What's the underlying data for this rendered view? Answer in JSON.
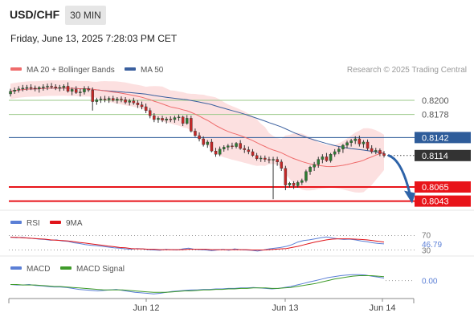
{
  "header": {
    "symbol": "USD/CHF",
    "timeframe": "30 MIN",
    "datetime": "Friday, June 13, 2025 7:28:03 PM CET"
  },
  "legend": {
    "ma20": "MA 20 + Bollinger Bands",
    "ma50": "MA 50",
    "rsi": "RSI",
    "rsi_ma": "9MA",
    "macd": "MACD",
    "macd_signal": "MACD Signal"
  },
  "credit": "Research © 2025 Trading Central",
  "colors": {
    "candle_up": "#2e7d32",
    "candle_down": "#c62828",
    "ma20": "#ef6b6b",
    "ma50": "#3a5f9e",
    "bollinger_fill": "#fbd6d6",
    "support": "#e8141a",
    "target": "#9bc98a",
    "current": "#333333",
    "pivot": "#2e5c9a",
    "arrow": "#2e63a8"
  },
  "chart_data": [
    {
      "type": "candlestick",
      "title": "USD/CHF",
      "x_ticks": [
        "Jun 12",
        "Jun 13",
        "Jun 14"
      ],
      "ylim": [
        0.8035,
        0.8235
      ],
      "levels": [
        {
          "value": 0.82,
          "label": "0.8200",
          "kind": "target"
        },
        {
          "value": 0.8178,
          "label": "0.8178",
          "kind": "target"
        },
        {
          "value": 0.8142,
          "label": "0.8142",
          "kind": "pivot"
        },
        {
          "value": 0.8114,
          "label": "0.8114",
          "kind": "current"
        },
        {
          "value": 0.8065,
          "label": "0.8065",
          "kind": "support"
        },
        {
          "value": 0.8043,
          "label": "0.8043",
          "kind": "support"
        }
      ],
      "candles": [
        [
          0.821,
          0.8218,
          0.8206,
          0.8214
        ],
        [
          0.8214,
          0.822,
          0.821,
          0.8216
        ],
        [
          0.8216,
          0.8222,
          0.8212,
          0.8218
        ],
        [
          0.8218,
          0.8224,
          0.8214,
          0.8219
        ],
        [
          0.8219,
          0.8224,
          0.8215,
          0.822
        ],
        [
          0.822,
          0.8225,
          0.8216,
          0.8219
        ],
        [
          0.8219,
          0.8223,
          0.8214,
          0.8218
        ],
        [
          0.8218,
          0.8222,
          0.8212,
          0.822
        ],
        [
          0.822,
          0.8225,
          0.8215,
          0.8221
        ],
        [
          0.8221,
          0.8226,
          0.8216,
          0.8222
        ],
        [
          0.8222,
          0.8227,
          0.8218,
          0.8221
        ],
        [
          0.8221,
          0.8225,
          0.8216,
          0.8219
        ],
        [
          0.8219,
          0.8224,
          0.8214,
          0.822
        ],
        [
          0.822,
          0.8225,
          0.8215,
          0.8222
        ],
        [
          0.8222,
          0.8228,
          0.8212,
          0.8214
        ],
        [
          0.8214,
          0.822,
          0.8208,
          0.8217
        ],
        [
          0.8217,
          0.8222,
          0.821,
          0.8212
        ],
        [
          0.8212,
          0.8218,
          0.8206,
          0.8213
        ],
        [
          0.8213,
          0.8222,
          0.8209,
          0.8218
        ],
        [
          0.8218,
          0.8222,
          0.8213,
          0.8216
        ],
        [
          0.8216,
          0.822,
          0.8184,
          0.8198
        ],
        [
          0.8198,
          0.8204,
          0.8193,
          0.8201
        ],
        [
          0.8201,
          0.8206,
          0.8196,
          0.8202
        ],
        [
          0.8202,
          0.8207,
          0.8197,
          0.8201
        ],
        [
          0.8201,
          0.8206,
          0.8196,
          0.8203
        ],
        [
          0.8203,
          0.8207,
          0.8198,
          0.82
        ],
        [
          0.82,
          0.8205,
          0.8195,
          0.8202
        ],
        [
          0.8202,
          0.8206,
          0.8197,
          0.8201
        ],
        [
          0.8201,
          0.8205,
          0.8194,
          0.8197
        ],
        [
          0.8197,
          0.8202,
          0.8192,
          0.8199
        ],
        [
          0.8199,
          0.8204,
          0.8193,
          0.8196
        ],
        [
          0.8196,
          0.82,
          0.8188,
          0.8193
        ],
        [
          0.8193,
          0.8198,
          0.8186,
          0.819
        ],
        [
          0.819,
          0.8195,
          0.818,
          0.8184
        ],
        [
          0.8184,
          0.8188,
          0.8172,
          0.8176
        ],
        [
          0.8176,
          0.818,
          0.8166,
          0.817
        ],
        [
          0.817,
          0.8175,
          0.8165,
          0.8172
        ],
        [
          0.8172,
          0.8176,
          0.8166,
          0.8169
        ],
        [
          0.8169,
          0.8174,
          0.8164,
          0.8171
        ],
        [
          0.8171,
          0.8175,
          0.8166,
          0.817
        ],
        [
          0.817,
          0.8176,
          0.8165,
          0.8173
        ],
        [
          0.8173,
          0.8178,
          0.8168,
          0.8174
        ],
        [
          0.8174,
          0.8176,
          0.816,
          0.8164
        ],
        [
          0.8164,
          0.8177,
          0.8162,
          0.8172
        ],
        [
          0.8172,
          0.8176,
          0.815,
          0.8152
        ],
        [
          0.8152,
          0.8156,
          0.8143,
          0.8145
        ],
        [
          0.8145,
          0.815,
          0.8136,
          0.814
        ],
        [
          0.814,
          0.8144,
          0.8128,
          0.8131
        ],
        [
          0.8131,
          0.8138,
          0.8126,
          0.8135
        ],
        [
          0.8135,
          0.814,
          0.8119,
          0.8121
        ],
        [
          0.8121,
          0.8126,
          0.8112,
          0.8116
        ],
        [
          0.8116,
          0.8128,
          0.8113,
          0.8124
        ],
        [
          0.8124,
          0.813,
          0.812,
          0.8127
        ],
        [
          0.8127,
          0.8132,
          0.8122,
          0.8129
        ],
        [
          0.8129,
          0.8134,
          0.8124,
          0.8128
        ],
        [
          0.8128,
          0.8135,
          0.8125,
          0.8133
        ],
        [
          0.8133,
          0.8138,
          0.8123,
          0.8125
        ],
        [
          0.8125,
          0.813,
          0.8118,
          0.8123
        ],
        [
          0.8123,
          0.8128,
          0.8116,
          0.812
        ],
        [
          0.812,
          0.8124,
          0.8112,
          0.8114
        ],
        [
          0.8114,
          0.8118,
          0.8106,
          0.8109
        ],
        [
          0.8109,
          0.8114,
          0.8104,
          0.811
        ],
        [
          0.811,
          0.8114,
          0.8104,
          0.8108
        ],
        [
          0.8108,
          0.8112,
          0.8102,
          0.8107
        ],
        [
          0.8107,
          0.8112,
          0.8046,
          0.8108
        ],
        [
          0.8108,
          0.8112,
          0.8098,
          0.8104
        ],
        [
          0.8104,
          0.8108,
          0.809,
          0.8094
        ],
        [
          0.8094,
          0.8098,
          0.806,
          0.8068
        ],
        [
          0.8068,
          0.8073,
          0.8064,
          0.8071
        ],
        [
          0.8071,
          0.8074,
          0.8062,
          0.8067
        ],
        [
          0.8067,
          0.8075,
          0.8064,
          0.8072
        ],
        [
          0.8072,
          0.8078,
          0.8068,
          0.8075
        ],
        [
          0.8075,
          0.8092,
          0.8072,
          0.8089
        ],
        [
          0.8089,
          0.8098,
          0.8084,
          0.8096
        ],
        [
          0.8096,
          0.8104,
          0.809,
          0.81
        ],
        [
          0.81,
          0.8112,
          0.8095,
          0.8108
        ],
        [
          0.8108,
          0.8116,
          0.8102,
          0.8112
        ],
        [
          0.8112,
          0.8118,
          0.8104,
          0.8106
        ],
        [
          0.8106,
          0.8118,
          0.8103,
          0.8116
        ],
        [
          0.8116,
          0.8124,
          0.8112,
          0.812
        ],
        [
          0.812,
          0.8128,
          0.8116,
          0.8124
        ],
        [
          0.8124,
          0.8132,
          0.8118,
          0.813
        ],
        [
          0.813,
          0.8137,
          0.8125,
          0.8134
        ],
        [
          0.8134,
          0.814,
          0.8128,
          0.8137
        ],
        [
          0.8137,
          0.8144,
          0.8132,
          0.814
        ],
        [
          0.814,
          0.8145,
          0.8128,
          0.8132
        ],
        [
          0.8132,
          0.8138,
          0.8126,
          0.8135
        ],
        [
          0.8135,
          0.8139,
          0.8122,
          0.8125
        ],
        [
          0.8125,
          0.813,
          0.8117,
          0.812
        ],
        [
          0.812,
          0.8126,
          0.8116,
          0.8122
        ],
        [
          0.8122,
          0.8125,
          0.8113,
          0.8117
        ],
        [
          0.8117,
          0.8121,
          0.8111,
          0.8114
        ]
      ]
    },
    {
      "type": "line",
      "title": "RSI",
      "y_ticks": [
        "70",
        "30"
      ],
      "last_value": "46.79",
      "ylim": [
        20,
        80
      ],
      "series": [
        {
          "name": "RSI",
          "values": [
            66,
            64,
            65,
            63,
            62,
            60,
            59,
            57,
            58,
            55,
            54,
            50,
            48,
            45,
            43,
            42,
            40,
            38,
            36,
            35,
            33,
            32,
            34,
            33,
            31,
            30,
            29,
            32,
            31,
            30,
            33,
            35,
            32,
            31,
            30,
            28,
            30,
            32,
            29,
            33,
            31,
            30,
            29,
            27,
            30,
            33,
            35,
            37,
            40,
            45,
            52,
            56,
            58,
            61,
            64,
            66,
            63,
            61,
            59,
            60,
            58,
            55,
            53,
            50,
            48,
            47
          ]
        },
        {
          "name": "9MA",
          "values": [
            65,
            65,
            64,
            63,
            62,
            61,
            60,
            58,
            57,
            56,
            55,
            53,
            51,
            49,
            47,
            45,
            43,
            41,
            39,
            37,
            36,
            34,
            33,
            33,
            32,
            32,
            31,
            31,
            31,
            31,
            31,
            32,
            32,
            32,
            32,
            31,
            31,
            31,
            31,
            31,
            31,
            31,
            30,
            30,
            30,
            31,
            32,
            33,
            34,
            37,
            40,
            44,
            48,
            52,
            55,
            58,
            60,
            61,
            61,
            61,
            60,
            59,
            58,
            56,
            54,
            52
          ]
        }
      ]
    },
    {
      "type": "line",
      "title": "MACD",
      "y_ticks": [
        "0.00"
      ],
      "ylim": [
        -0.003,
        0.0014
      ],
      "series": [
        {
          "name": "MACD",
          "values": [
            -0.0008,
            -0.0009,
            -0.0009,
            -0.0008,
            -0.001,
            -0.0011,
            -0.0012,
            -0.0013,
            -0.0013,
            -0.0014,
            -0.0016,
            -0.0018,
            -0.0019,
            -0.002,
            -0.0021,
            -0.002,
            -0.0019,
            -0.0018,
            -0.002,
            -0.0022,
            -0.0024,
            -0.0025,
            -0.0026,
            -0.0027,
            -0.0026,
            -0.0024,
            -0.0022,
            -0.0021,
            -0.002,
            -0.0019,
            -0.0019,
            -0.0018,
            -0.0018,
            -0.0017,
            -0.0017,
            -0.0016,
            -0.0016,
            -0.0015,
            -0.0015,
            -0.0014,
            -0.0015,
            -0.0016,
            -0.0017,
            -0.0016,
            -0.0014,
            -0.0012,
            -0.0009,
            -0.0006,
            -0.0003,
            0.0,
            0.0003,
            0.0006,
            0.0008,
            0.001,
            0.0011,
            0.0012,
            0.0012,
            0.0011,
            0.0009,
            0.0007,
            0.0005
          ]
        },
        {
          "name": "MACD Signal",
          "values": [
            -0.0008,
            -0.0008,
            -0.0009,
            -0.0009,
            -0.0009,
            -0.001,
            -0.0011,
            -0.0012,
            -0.0012,
            -0.0013,
            -0.0014,
            -0.0015,
            -0.0016,
            -0.0017,
            -0.0018,
            -0.0019,
            -0.0019,
            -0.0019,
            -0.0019,
            -0.002,
            -0.0021,
            -0.0022,
            -0.0023,
            -0.0024,
            -0.0024,
            -0.0024,
            -0.0023,
            -0.0022,
            -0.0021,
            -0.0021,
            -0.002,
            -0.0019,
            -0.0019,
            -0.0018,
            -0.0018,
            -0.0017,
            -0.0017,
            -0.0016,
            -0.0016,
            -0.0015,
            -0.0015,
            -0.0015,
            -0.0016,
            -0.0016,
            -0.0015,
            -0.0014,
            -0.0012,
            -0.001,
            -0.0008,
            -0.0006,
            -0.0003,
            0.0,
            0.0003,
            0.0005,
            0.0007,
            0.0009,
            0.001,
            0.001,
            0.001,
            0.0009,
            0.0008
          ]
        }
      ]
    }
  ]
}
